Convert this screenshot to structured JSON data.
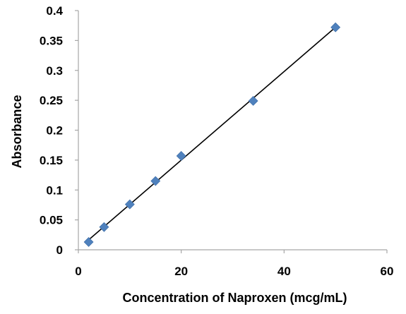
{
  "chart_data": {
    "type": "scatter",
    "title": "",
    "xlabel": "Concentration of Naproxen (mcg/mL)",
    "ylabel": "Absorbance",
    "xlim": [
      0,
      60
    ],
    "ylim": [
      0,
      0.4
    ],
    "x_ticks": [
      "0",
      "20",
      "40",
      "60"
    ],
    "y_ticks": [
      "0",
      "0.05",
      "0.1",
      "0.15",
      "0.2",
      "0.25",
      "0.3",
      "0.35",
      "0.4"
    ],
    "grid": false,
    "legend": "none",
    "marker": "diamond",
    "marker_color": "#4f81bd",
    "trendline": {
      "type": "linear",
      "color": "#000000",
      "x_start": 2,
      "x_end": 50
    },
    "series": [
      {
        "x": [
          2,
          5,
          10,
          15,
          20,
          34,
          50
        ],
        "y": [
          0.013,
          0.038,
          0.076,
          0.115,
          0.157,
          0.249,
          0.372
        ]
      }
    ]
  }
}
